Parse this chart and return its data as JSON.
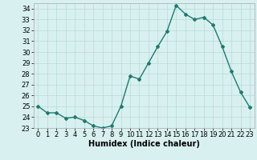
{
  "x": [
    0,
    1,
    2,
    3,
    4,
    5,
    6,
    7,
    8,
    9,
    10,
    11,
    12,
    13,
    14,
    15,
    16,
    17,
    18,
    19,
    20,
    21,
    22,
    23
  ],
  "y": [
    25.0,
    24.4,
    24.4,
    23.9,
    24.0,
    23.7,
    23.2,
    23.0,
    23.2,
    25.0,
    27.8,
    27.5,
    29.0,
    30.5,
    31.9,
    34.3,
    33.5,
    33.0,
    33.2,
    32.5,
    30.5,
    28.2,
    26.3,
    24.9
  ],
  "line_color": "#1e7b6e",
  "bg_color": "#d8f0ef",
  "grid_color": "#b8dbd8",
  "xlabel": "Humidex (Indice chaleur)",
  "xlim": [
    -0.5,
    23.5
  ],
  "ylim": [
    23,
    34.5
  ],
  "yticks": [
    23,
    24,
    25,
    26,
    27,
    28,
    29,
    30,
    31,
    32,
    33,
    34
  ],
  "xticks": [
    0,
    1,
    2,
    3,
    4,
    5,
    6,
    7,
    8,
    9,
    10,
    11,
    12,
    13,
    14,
    15,
    16,
    17,
    18,
    19,
    20,
    21,
    22,
    23
  ],
  "marker": "D",
  "marker_size": 2.0,
  "line_width": 1.0,
  "xlabel_fontsize": 7,
  "tick_fontsize": 6
}
